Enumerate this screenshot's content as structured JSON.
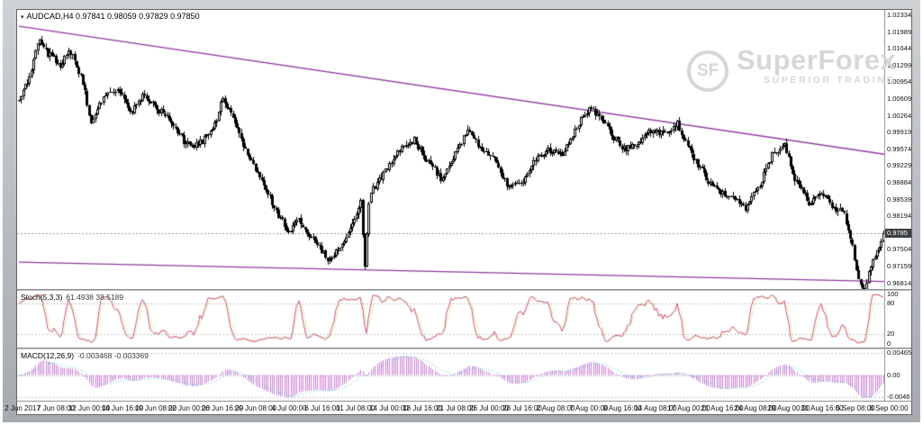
{
  "window": {
    "title_text": "AUDCAD,H4  0.97841 0.98059 0.97829 0.97850",
    "symbol": "AUDCAD",
    "timeframe": "H4",
    "ohlc": {
      "open": "0.97841",
      "high": "0.98059",
      "low": "0.97829",
      "close": "0.97850"
    }
  },
  "icons": {
    "symbol_dropdown": "▾"
  },
  "watermark": {
    "logo_text": "SF",
    "brand": "SuperForex",
    "tagline": "SUPERIOR TRADING"
  },
  "price_axis": {
    "labels": [
      "1.02334",
      "1.01989",
      "1.01644",
      "1.01299",
      "1.00954",
      "1.00609",
      "1.00264",
      "0.99919",
      "0.99574",
      "0.99229",
      "0.98884",
      "0.98539",
      "0.98194",
      "0.97504",
      "0.97159",
      "0.96814"
    ],
    "current_price": "0.9785"
  },
  "indicators": {
    "stoch": {
      "label": "Stoch(5,3,3)",
      "values": "61.4938 38.5189",
      "axis": [
        "100",
        "80",
        "20",
        "0"
      ],
      "levels": [
        80,
        20
      ],
      "period_k": 5,
      "period_d": 3,
      "slowing": 3
    },
    "macd": {
      "label": "MACD(12,26,9)",
      "values": "-0.003468 -0.003369",
      "axis": [
        "0.00465",
        "0.00",
        "-0.0046"
      ],
      "fast": 12,
      "slow": 26,
      "signal": 9,
      "scale_max": 0.00465
    }
  },
  "time_axis": {
    "labels": [
      "2 Jun 2017",
      "7 Jun 08:00",
      "12 Jun 00:00",
      "14 Jun 16:00",
      "19 Jun 08:00",
      "22 Jun 00:00",
      "26 Jun 16:00",
      "29 Jun 08:00",
      "4 Jul 00:00",
      "6 Jul 16:00",
      "11 Jul 08:00",
      "14 Jul 00:00",
      "18 Jul 16:00",
      "21 Jul 08:00",
      "26 Jul 00:00",
      "28 Jul 16:00",
      "2 Aug 08:00",
      "7 Aug 00:00",
      "9 Aug 16:00",
      "14 Aug 08:00",
      "17 Aug 00:00",
      "21 Aug 16:00",
      "24 Aug 08:00",
      "29 Aug 00:00",
      "31 Aug 16:00",
      "5 Sep 08:00",
      "8 Sep 00:00"
    ]
  },
  "chart_data": {
    "type": "candlestick-ohlc",
    "symbol": "AUDCAD",
    "timeframe": "H4",
    "bars": 421,
    "price_top": 1.02334,
    "price_step": 0.00345,
    "last_close": 0.9785,
    "seed": 20170908,
    "price_path_anchors": [
      [
        0,
        1.0057
      ],
      [
        4,
        1.0095
      ],
      [
        10,
        1.0183
      ],
      [
        14,
        1.0155
      ],
      [
        17,
        1.0147
      ],
      [
        20,
        1.013
      ],
      [
        24,
        1.0167
      ],
      [
        28,
        1.013
      ],
      [
        31,
        1.0097
      ],
      [
        35,
        1.0007
      ],
      [
        38,
        1.004
      ],
      [
        41,
        1.0067
      ],
      [
        48,
        1.0077
      ],
      [
        55,
        1.0037
      ],
      [
        61,
        1.0071
      ],
      [
        68,
        1.0037
      ],
      [
        74,
        1.0017
      ],
      [
        81,
        0.9967
      ],
      [
        87,
        0.9967
      ],
      [
        92,
        0.9987
      ],
      [
        97,
        1.003
      ],
      [
        99,
        1.0067
      ],
      [
        102,
        1.004
      ],
      [
        105,
        1.0007
      ],
      [
        111,
        0.9947
      ],
      [
        118,
        0.9897
      ],
      [
        124,
        0.9837
      ],
      [
        131,
        0.9787
      ],
      [
        135,
        0.9815
      ],
      [
        137,
        0.9807
      ],
      [
        141,
        0.978
      ],
      [
        144,
        0.9767
      ],
      [
        150,
        0.9731
      ],
      [
        153,
        0.9745
      ],
      [
        156,
        0.9757
      ],
      [
        161,
        0.9797
      ],
      [
        166,
        0.9847
      ],
      [
        168,
        0.972
      ],
      [
        170,
        0.985
      ],
      [
        172,
        0.9877
      ],
      [
        179,
        0.9917
      ],
      [
        185,
        0.9957
      ],
      [
        192,
        0.9977
      ],
      [
        198,
        0.9937
      ],
      [
        205,
        0.9897
      ],
      [
        212,
        0.9947
      ],
      [
        218,
        0.9997
      ],
      [
        225,
        0.9957
      ],
      [
        231,
        0.9937
      ],
      [
        238,
        0.9877
      ],
      [
        244,
        0.9887
      ],
      [
        251,
        0.9937
      ],
      [
        257,
        0.9957
      ],
      [
        264,
        0.9947
      ],
      [
        270,
        0.9997
      ],
      [
        277,
        1.0043
      ],
      [
        283,
        1.0017
      ],
      [
        288,
        0.9987
      ],
      [
        294,
        0.9957
      ],
      [
        301,
        0.9967
      ],
      [
        307,
        0.9997
      ],
      [
        314,
        0.9987
      ],
      [
        320,
        1.0011
      ],
      [
        327,
        0.9947
      ],
      [
        334,
        0.9897
      ],
      [
        340,
        0.9867
      ],
      [
        347,
        0.9857
      ],
      [
        353,
        0.9831
      ],
      [
        360,
        0.9887
      ],
      [
        366,
        0.9947
      ],
      [
        372,
        0.9963
      ],
      [
        377,
        0.9897
      ],
      [
        384,
        0.9847
      ],
      [
        390,
        0.9867
      ],
      [
        396,
        0.9837
      ],
      [
        401,
        0.9827
      ],
      [
        405,
        0.9757
      ],
      [
        408,
        0.9687
      ],
      [
        411,
        0.9655
      ],
      [
        413,
        0.97
      ],
      [
        415,
        0.9727
      ],
      [
        418,
        0.9757
      ],
      [
        420,
        0.9785
      ]
    ],
    "trendlines": [
      {
        "name": "upper-resistance",
        "from": [
          0,
          1.0211
        ],
        "to": [
          420,
          0.9947
        ]
      },
      {
        "name": "lower-support",
        "from": [
          0,
          0.9725
        ],
        "to": [
          420,
          0.9685
        ]
      }
    ],
    "colors": {
      "candle": "#000000",
      "bull_fill": "#ffffff",
      "trend": "#9038a0",
      "price_line": "#9a9a9a",
      "stoch_main": "#cf4f72",
      "stoch_signal": "#9acd32",
      "macd_hist": "#cd7fd6",
      "macd_signal": "#4fcfcf",
      "level": "#c4c4c4"
    }
  }
}
